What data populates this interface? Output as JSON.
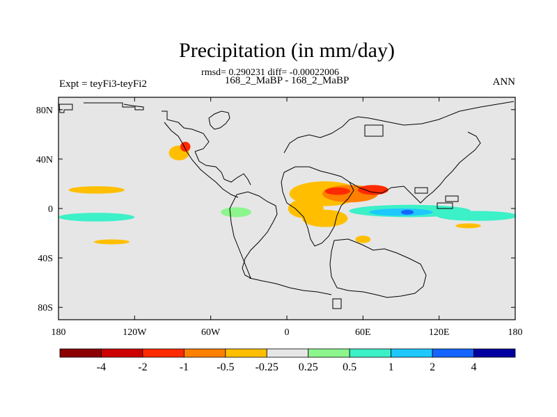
{
  "chart_data": {
    "type": "heatmap",
    "title": "Precipitation (in mm/day)",
    "stats_line": "rmsd= 0.290231 diff= -0.00022006",
    "subtitle": "168_2_MaBP - 168_2_MaBP",
    "left_label": "Expt = teyFi3-teyFi2",
    "right_label": "ANN",
    "x_ticks": [
      {
        "value": -180,
        "label": "180"
      },
      {
        "value": -120,
        "label": "120W"
      },
      {
        "value": -60,
        "label": "60W"
      },
      {
        "value": 0,
        "label": "0"
      },
      {
        "value": 60,
        "label": "60E"
      },
      {
        "value": 120,
        "label": "120E"
      },
      {
        "value": 180,
        "label": "180"
      }
    ],
    "y_ticks": [
      {
        "value": 80,
        "label": "80N"
      },
      {
        "value": 40,
        "label": "40N"
      },
      {
        "value": 0,
        "label": "0"
      },
      {
        "value": -40,
        "label": "40S"
      },
      {
        "value": -80,
        "label": "80S"
      }
    ],
    "xlim": [
      -180,
      180
    ],
    "ylim": [
      -90,
      90
    ],
    "colorbar": {
      "colors": [
        "#8b0000",
        "#cd0000",
        "#ff2a00",
        "#ff7f00",
        "#ffbf00",
        "#e6e6e6",
        "#8cf58c",
        "#3cf0c8",
        "#1ec8ff",
        "#1464ff",
        "#0000a0"
      ],
      "labels": [
        "-4",
        "-2",
        "-1",
        "-0.5",
        "-0.25",
        "0.25",
        "0.5",
        "1",
        "2",
        "4"
      ]
    },
    "anomalies": [
      {
        "lon": -150,
        "lat": 15,
        "rx": 22,
        "ry": 3,
        "level": -0.3
      },
      {
        "lon": -150,
        "lat": -7,
        "rx": 30,
        "ry": 3.5,
        "level": 0.6
      },
      {
        "lon": -138,
        "lat": -27,
        "rx": 14,
        "ry": 2,
        "level": -0.3
      },
      {
        "lon": 30,
        "lat": 12,
        "rx": 28,
        "ry": 10,
        "level": -0.35
      },
      {
        "lon": 50,
        "lat": 12,
        "rx": 22,
        "ry": 7,
        "level": -0.6
      },
      {
        "lon": 40,
        "lat": 14,
        "rx": 10,
        "ry": 3,
        "level": -1.5
      },
      {
        "lon": 68,
        "lat": 15,
        "rx": 12,
        "ry": 4,
        "level": -1.5
      },
      {
        "lon": 15,
        "lat": 0,
        "rx": 14,
        "ry": 8,
        "level": -0.35
      },
      {
        "lon": 30,
        "lat": -8,
        "rx": 18,
        "ry": 7,
        "level": -0.3
      },
      {
        "lon": 97,
        "lat": -2,
        "rx": 48,
        "ry": 5,
        "level": 0.6
      },
      {
        "lon": 90,
        "lat": -3,
        "rx": 25,
        "ry": 3,
        "level": 1.2
      },
      {
        "lon": 95,
        "lat": -3,
        "rx": 5,
        "ry": 2,
        "level": 2.5
      },
      {
        "lon": 150,
        "lat": -6,
        "rx": 32,
        "ry": 4,
        "level": 0.6
      },
      {
        "lon": 143,
        "lat": -14,
        "rx": 10,
        "ry": 2,
        "level": -0.3
      },
      {
        "lon": -85,
        "lat": 45,
        "rx": 8,
        "ry": 6,
        "level": -0.4
      },
      {
        "lon": -80,
        "lat": 50,
        "rx": 4,
        "ry": 4,
        "level": -1.5
      },
      {
        "lon": -40,
        "lat": -3,
        "rx": 12,
        "ry": 4,
        "level": 0.4
      },
      {
        "lon": 60,
        "lat": -25,
        "rx": 6,
        "ry": 3,
        "level": -0.3
      }
    ]
  }
}
